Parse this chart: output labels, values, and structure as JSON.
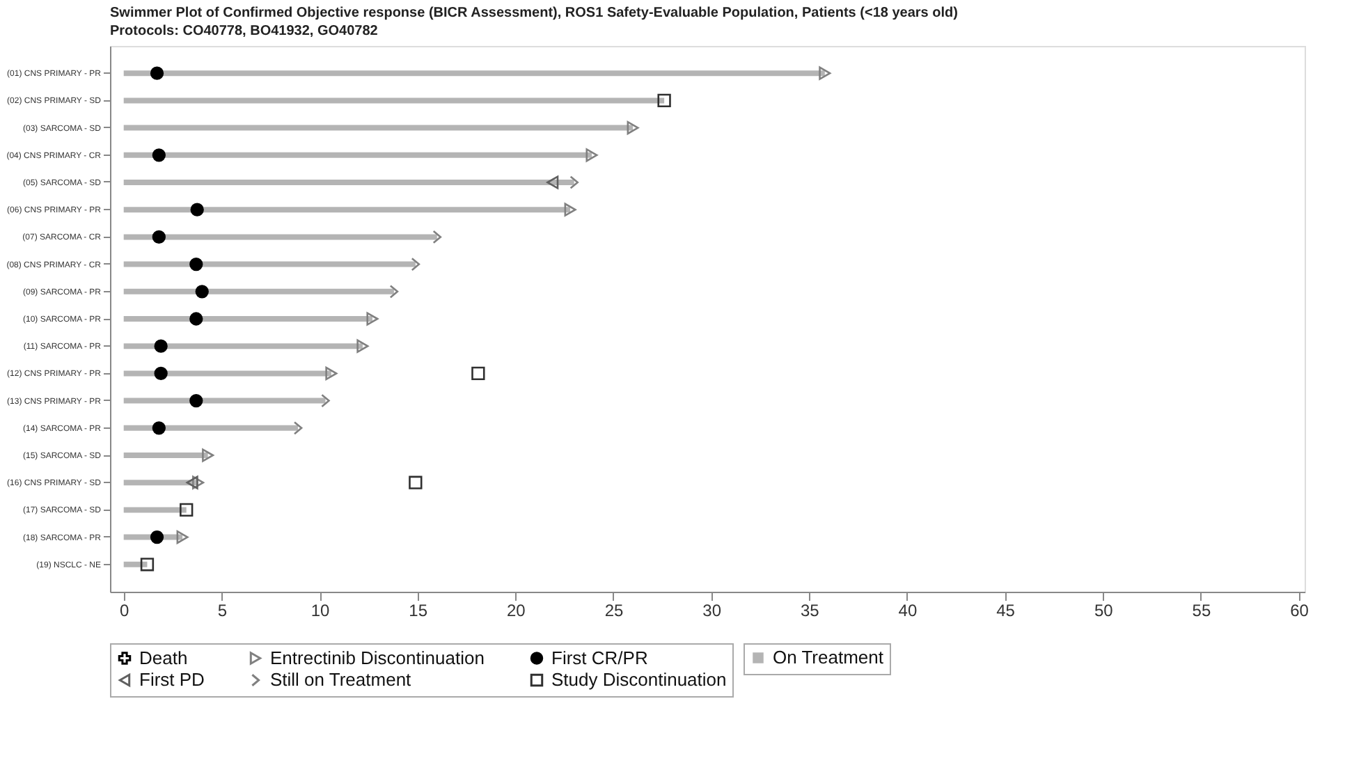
{
  "chart_data": {
    "type": "bar",
    "orientation": "horizontal",
    "title": "Swimmer Plot of Confirmed Objective response (BICR Assessment), ROS1 Safety-Evaluable Population, Patients (<18 years old)",
    "subtitle": "Protocols: CO40778, BO41932, GO40782",
    "categories": [
      "(01) CNS PRIMARY - PR",
      "(02) CNS PRIMARY - SD",
      "(03) SARCOMA - SD",
      "(04) CNS PRIMARY - CR",
      "(05) SARCOMA - SD",
      "(06) CNS PRIMARY - PR",
      "(07) SARCOMA - CR",
      "(08) CNS PRIMARY - CR",
      "(09) SARCOMA - PR",
      "(10) SARCOMA - PR",
      "(11) SARCOMA - PR",
      "(12) CNS PRIMARY - PR",
      "(13) CNS PRIMARY - PR",
      "(14) SARCOMA - PR",
      "(15) SARCOMA - SD",
      "(16) CNS PRIMARY - SD",
      "(17) SARCOMA - SD",
      "(18) SARCOMA - PR",
      "(19) NSCLC - NE"
    ],
    "series": [
      {
        "name": "On Treatment",
        "color": "#b4b4b4",
        "values": [
          35.8,
          27.6,
          26.0,
          23.9,
          23.0,
          22.8,
          16.0,
          14.9,
          13.8,
          12.7,
          12.2,
          10.6,
          10.3,
          8.9,
          4.3,
          3.8,
          3.2,
          3.0,
          1.2
        ]
      },
      {
        "name": "Death",
        "type": "scatter",
        "marker": "cross",
        "color": "#000000",
        "values": [
          null,
          null,
          null,
          null,
          null,
          null,
          null,
          null,
          null,
          null,
          null,
          null,
          null,
          null,
          null,
          null,
          null,
          null,
          null
        ]
      },
      {
        "name": "Entrectinib Discontinuation",
        "type": "scatter",
        "marker": "triangle-right",
        "color": "#808080",
        "values": [
          35.8,
          null,
          26.0,
          23.9,
          null,
          22.8,
          null,
          null,
          null,
          12.7,
          12.2,
          10.6,
          null,
          null,
          4.3,
          3.8,
          null,
          3.0,
          null
        ]
      },
      {
        "name": "First CR/PR",
        "type": "scatter",
        "marker": "circle",
        "color": "#000000",
        "values": [
          1.7,
          null,
          null,
          1.8,
          null,
          3.75,
          1.8,
          3.7,
          4.0,
          3.7,
          1.9,
          1.9,
          3.7,
          1.8,
          null,
          null,
          null,
          1.7,
          null
        ]
      },
      {
        "name": "First PD",
        "type": "scatter",
        "marker": "triangle-left",
        "color": "#606060",
        "values": [
          null,
          null,
          null,
          null,
          21.9,
          null,
          null,
          null,
          null,
          null,
          null,
          null,
          null,
          null,
          null,
          3.5,
          null,
          null,
          null
        ]
      },
      {
        "name": "Still on Treatment",
        "type": "scatter",
        "color": "#808080",
        "values": [
          null,
          null,
          null,
          null,
          23.0,
          null,
          16.0,
          14.9,
          13.8,
          null,
          null,
          null,
          10.3,
          8.9,
          null,
          null,
          null,
          null,
          null
        ]
      },
      {
        "name": "Study Discontinuation",
        "type": "scatter",
        "marker": "square",
        "color": "#303030",
        "values": [
          null,
          27.6,
          null,
          null,
          null,
          null,
          null,
          null,
          null,
          null,
          null,
          18.1,
          null,
          null,
          null,
          14.9,
          3.2,
          null,
          1.2
        ]
      }
    ],
    "xlim": [
      -0.7,
      60.3
    ],
    "xticks": [
      0,
      5,
      10,
      15,
      20,
      25,
      30,
      35,
      40,
      45,
      50,
      55,
      60
    ],
    "grid": false,
    "legend": "bottom"
  }
}
